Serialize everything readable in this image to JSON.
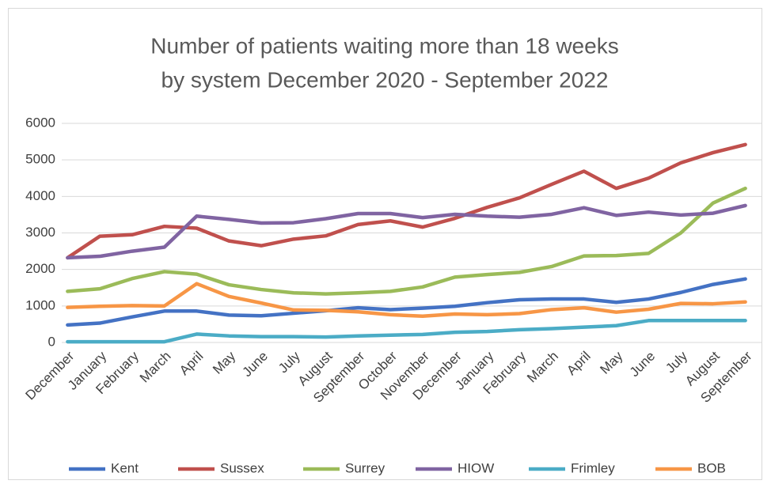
{
  "chart_data": {
    "type": "line",
    "title": [
      "Number of patients waiting more than 18 weeks",
      "by system December 2020 - September  2022"
    ],
    "categories": [
      "December",
      "January",
      "February",
      "March",
      "April",
      "May",
      "June",
      "July",
      "August",
      "September",
      "October",
      "November",
      "December",
      "January",
      "February",
      "March",
      "April",
      "May",
      "June",
      "July",
      "August",
      "September"
    ],
    "series": [
      {
        "name": "Kent",
        "color": "#4472c4",
        "values": [
          480,
          530,
          700,
          860,
          860,
          750,
          730,
          800,
          870,
          950,
          900,
          940,
          990,
          1090,
          1170,
          1190,
          1190,
          1100,
          1190,
          1370,
          1590,
          1740
        ]
      },
      {
        "name": "Sussex",
        "color": "#c0504d",
        "values": [
          2320,
          2910,
          2950,
          3180,
          3130,
          2780,
          2650,
          2830,
          2920,
          3230,
          3330,
          3160,
          3400,
          3700,
          3960,
          4330,
          4690,
          4220,
          4500,
          4920,
          5200,
          5420
        ]
      },
      {
        "name": "Surrey",
        "color": "#9bbb59",
        "values": [
          1400,
          1470,
          1750,
          1940,
          1870,
          1580,
          1450,
          1360,
          1330,
          1360,
          1400,
          1520,
          1790,
          1860,
          1920,
          2080,
          2370,
          2380,
          2440,
          3000,
          3820,
          4220
        ]
      },
      {
        "name": "HIOW",
        "color": "#8064a2",
        "values": [
          2320,
          2360,
          2500,
          2610,
          3460,
          3370,
          3270,
          3280,
          3390,
          3530,
          3530,
          3420,
          3510,
          3460,
          3430,
          3510,
          3690,
          3480,
          3570,
          3490,
          3540,
          3750
        ]
      },
      {
        "name": "Frimley",
        "color": "#4bacc6",
        "values": [
          20,
          20,
          20,
          20,
          230,
          180,
          160,
          160,
          150,
          180,
          200,
          220,
          280,
          300,
          350,
          380,
          420,
          460,
          600,
          600,
          600,
          600
        ]
      },
      {
        "name": "BOB",
        "color": "#f79646",
        "values": [
          960,
          990,
          1010,
          1000,
          1610,
          1260,
          1080,
          890,
          880,
          840,
          760,
          720,
          780,
          760,
          790,
          900,
          950,
          830,
          910,
          1070,
          1060,
          1110
        ]
      }
    ],
    "ylim": [
      0,
      6000
    ],
    "yticks": [
      0,
      1000,
      2000,
      3000,
      4000,
      5000,
      6000
    ],
    "grid": true,
    "legend": "bottom"
  }
}
